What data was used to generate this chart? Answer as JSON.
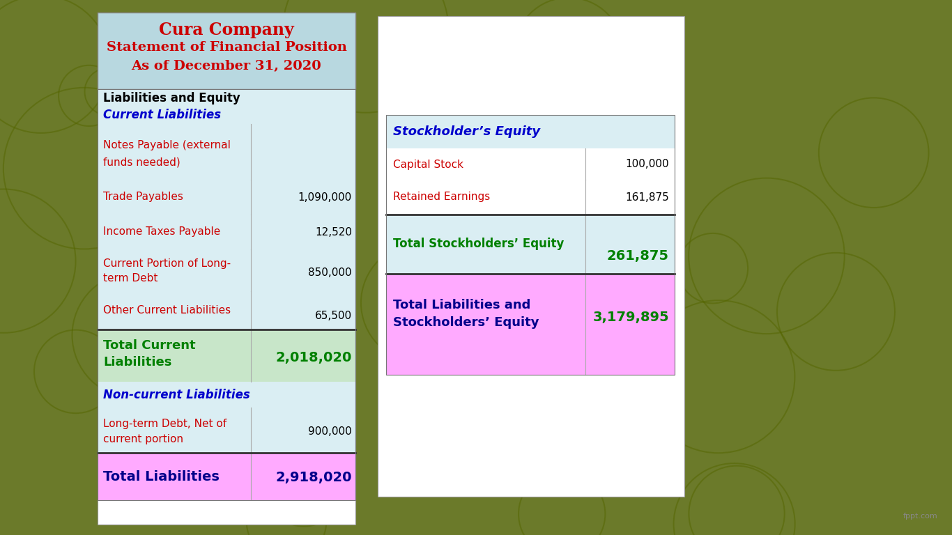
{
  "title_line1": "Cura Company",
  "title_line2": "Statement of Financial Position",
  "title_line3": "As of December 31, 2020",
  "title_bg": "#b8d8e0",
  "title_color": "#cc0000",
  "left_table_bg_light": "#daeef3",
  "green_bg": "#c8e6c9",
  "pink_bg": "#ffaaff",
  "liabilities_header": "Liabilities and Equity",
  "current_liabilities_header": "Current Liabilities",
  "non_current_header": "Non-current Liabilities",
  "total_current_label1": "Total Current",
  "total_current_label2": "Liabilities",
  "total_current_value": "2,018,020",
  "total_liabilities_label": "Total Liabilities",
  "total_liabilities_value": "2,918,020",
  "stockholder_header": "Stockholder’s Equity",
  "total_equity_label": "Total Stockholders’ Equity",
  "total_equity_value": "261,875",
  "total_liab_equity_label1": "Total Liabilities and",
  "total_liab_equity_label2": "Stockholders’ Equity",
  "total_liab_equity_value": "3,179,895",
  "bg_color": "#6b7a2a",
  "green_color": "#008000",
  "blue_color": "#0000cc",
  "dark_blue": "#00008b",
  "red_color": "#cc0000",
  "black": "#000000",
  "white": "#ffffff",
  "gray_line": "#aaaaaa",
  "dark_line": "#333333"
}
